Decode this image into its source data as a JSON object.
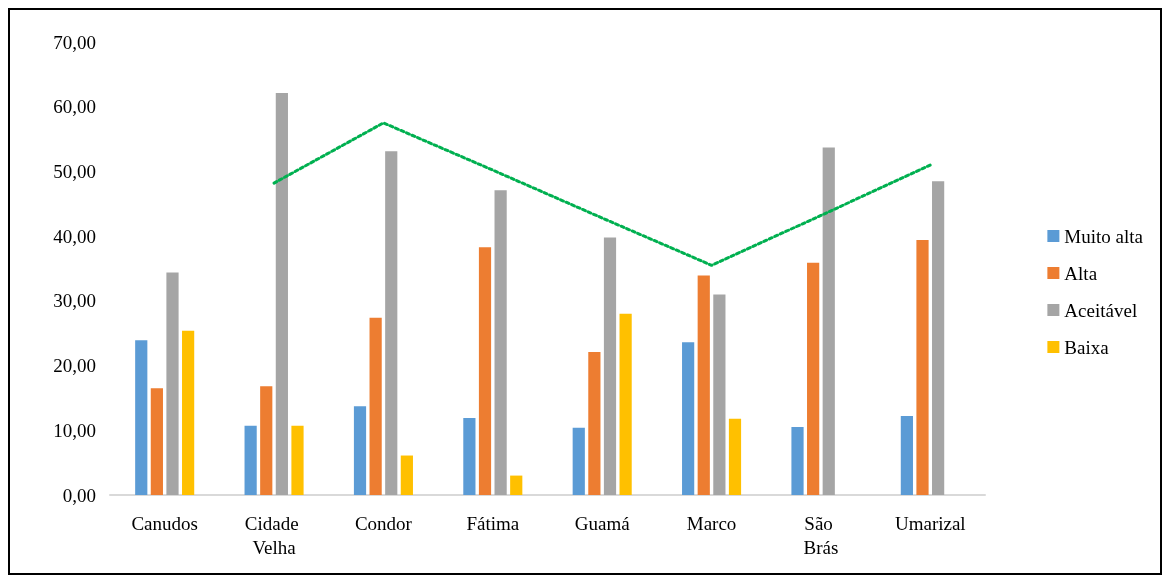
{
  "chart_data": {
    "type": "bar",
    "categories": [
      "Canudos",
      "Cidade Velha",
      "Condor",
      "Fátima",
      "Guamá",
      "Marco",
      "São Brás",
      "Umarizal"
    ],
    "series": [
      {
        "name": "Muito alta",
        "color": "#5b9bd5",
        "values": [
          23.9,
          10.7,
          13.7,
          11.9,
          10.4,
          23.6,
          10.5,
          12.2
        ]
      },
      {
        "name": "Alta",
        "color": "#ed7d31",
        "values": [
          16.5,
          16.8,
          27.4,
          38.3,
          22.1,
          33.9,
          35.9,
          39.4
        ]
      },
      {
        "name": "Aceitável",
        "color": "#a5a5a5",
        "values": [
          34.4,
          62.1,
          53.1,
          47.1,
          39.8,
          31.0,
          53.7,
          48.5
        ]
      },
      {
        "name": "Baixa",
        "color": "#ffc000",
        "values": [
          25.4,
          10.7,
          6.1,
          3.0,
          28.0,
          11.8,
          null,
          null
        ]
      },
      {
        "type": "line",
        "color": "#00b050",
        "line_style": "dotted",
        "marker": "none",
        "values": [
          null,
          48.2,
          57.5,
          50.2,
          42.8,
          35.5,
          43.2,
          51.0
        ]
      }
    ],
    "ylim": [
      0,
      70
    ],
    "yticks": [
      {
        "value": 0,
        "label": "0,00"
      },
      {
        "value": 10,
        "label": "10,00"
      },
      {
        "value": 20,
        "label": "20,00"
      },
      {
        "value": 30,
        "label": "30,00"
      },
      {
        "value": 40,
        "label": "40,00"
      },
      {
        "value": 50,
        "label": "50,00"
      },
      {
        "value": 60,
        "label": "60,00"
      },
      {
        "value": 70,
        "label": "70,00"
      }
    ],
    "grid": false,
    "legend": "right"
  }
}
